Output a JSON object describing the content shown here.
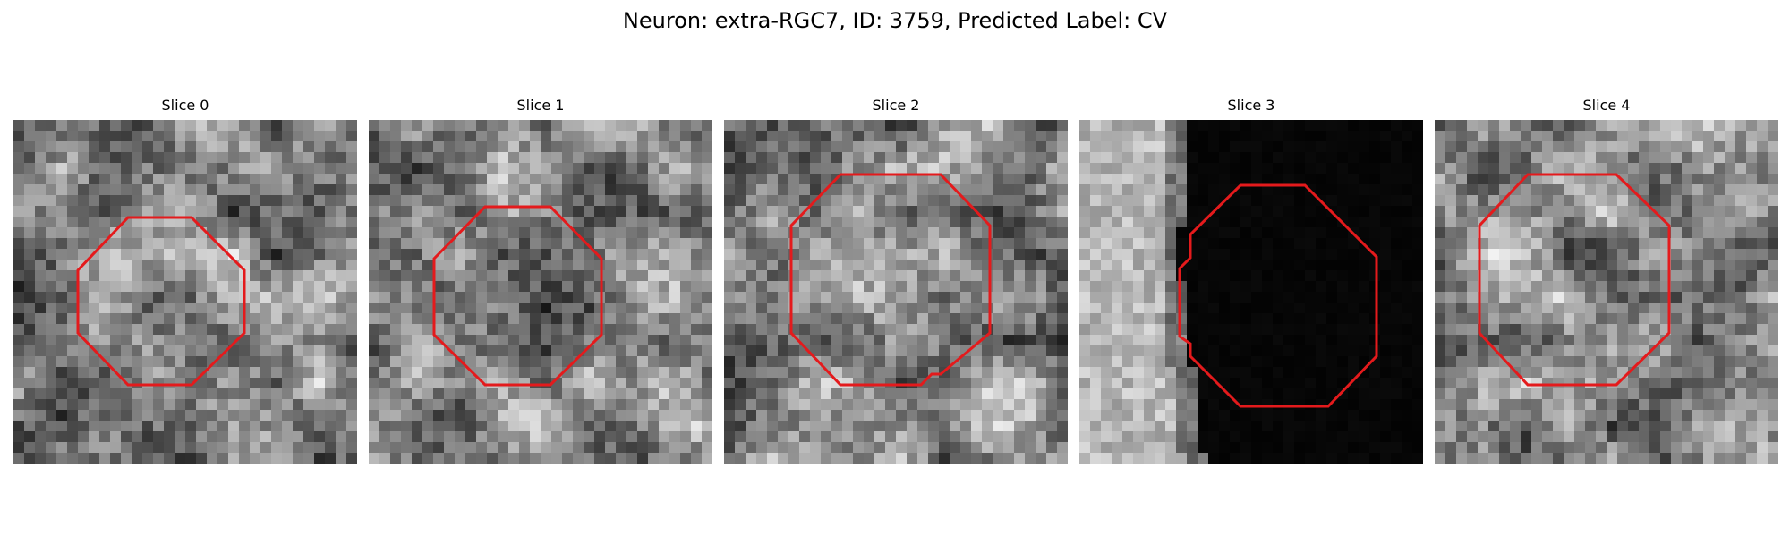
{
  "figure": {
    "title": "Neuron: extra-RGC7, ID: 3759, Predicted Label: CV"
  },
  "panels": [
    {
      "label": "Slice 0",
      "style": "tissue",
      "seed": 11
    },
    {
      "label": "Slice 1",
      "style": "tissue",
      "seed": 27
    },
    {
      "label": "Slice 2",
      "style": "tissue",
      "seed": 43
    },
    {
      "label": "Slice 3",
      "style": "edge-dark",
      "seed": 59
    },
    {
      "label": "Slice 4",
      "style": "tissue",
      "seed": 71
    }
  ],
  "colors": {
    "outline": "#e41a1c"
  }
}
